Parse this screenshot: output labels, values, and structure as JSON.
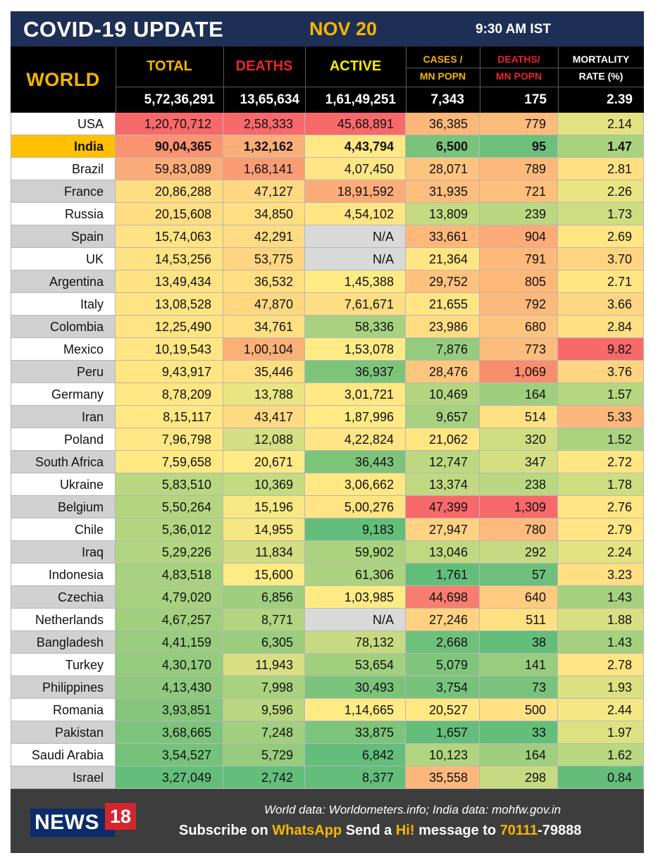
{
  "header": {
    "title": "COVID-19 UPDATE",
    "date": "NOV 20",
    "time": "9:30 AM IST"
  },
  "columns": {
    "region": "WORLD",
    "total": "TOTAL",
    "deaths": "DEATHS",
    "active": "ACTIVE",
    "cases_line1": "CASES /",
    "cases_line2": "MN POPN",
    "deaths_pm_line1": "DEATHS/",
    "deaths_pm_line2": "MN POPN",
    "mortality_line1": "MORTALITY",
    "mortality_line2": "RATE (%)"
  },
  "world_totals": {
    "total": "5,72,36,291",
    "deaths": "13,65,634",
    "active": "1,61,49,251",
    "cases_per_mn": "7,343",
    "deaths_per_mn": "175",
    "mortality": "2.39"
  },
  "colors": {
    "header_bg": "#1e2f55",
    "accent_yellow": "#f7b500",
    "deaths_red": "#e8262a",
    "highlight_row": "#ffc000",
    "row_alt_gray": "#d0d0d0",
    "scale_red": "#f8696b",
    "scale_orange": "#fcb77a",
    "scale_yellow": "#ffeb84",
    "scale_lightgreen": "#b1d580",
    "scale_green": "#63be7b",
    "na_gray": "#d9d9d9"
  },
  "rows": [
    {
      "country": "USA",
      "total": "1,20,70,712",
      "deaths": "2,58,333",
      "active": "45,68,891",
      "cases_pm": "36,385",
      "deaths_pm": "779",
      "mortality": "2.14",
      "bg": [
        "#f8696b",
        "#f8696b",
        "#f8696b",
        "#fcb77a",
        "#fdbb7c",
        "#e3e282"
      ]
    },
    {
      "country": "India",
      "total": "90,04,365",
      "deaths": "1,32,162",
      "active": "4,43,794",
      "cases_pm": "6,500",
      "deaths_pm": "95",
      "mortality": "1.47",
      "highlight": true,
      "bg": [
        "#f99370",
        "#fbae78",
        "#ffe883",
        "#79c37b",
        "#6cc07b",
        "#a9d27f"
      ]
    },
    {
      "country": "Brazil",
      "total": "59,83,089",
      "deaths": "1,68,141",
      "active": "4,07,450",
      "cases_pm": "28,071",
      "deaths_pm": "789",
      "mortality": "2.81",
      "bg": [
        "#fbac78",
        "#f99c74",
        "#ffe583",
        "#fdc47e",
        "#fdb97b",
        "#fee083"
      ]
    },
    {
      "country": "France",
      "total": "20,86,288",
      "deaths": "47,127",
      "active": "18,91,592",
      "cases_pm": "31,935",
      "deaths_pm": "721",
      "mortality": "2.26",
      "alt": true,
      "bg": [
        "#ffdd82",
        "#ffd881",
        "#fcac78",
        "#fdbd7c",
        "#fdc07d",
        "#e8e482"
      ]
    },
    {
      "country": "Russia",
      "total": "20,15,608",
      "deaths": "34,850",
      "active": "4,54,102",
      "cases_pm": "13,809",
      "deaths_pm": "239",
      "mortality": "1.73",
      "bg": [
        "#ffdd82",
        "#ffdf82",
        "#ffe583",
        "#c3da81",
        "#bad781",
        "#cfdd81"
      ]
    },
    {
      "country": "Spain",
      "total": "15,74,063",
      "deaths": "42,291",
      "active": "N/A",
      "cases_pm": "33,661",
      "deaths_pm": "904",
      "mortality": "2.69",
      "alt": true,
      "na": true,
      "bg": [
        "#ffe283",
        "#ffdb82",
        "#d9d9d9",
        "#fdb87a",
        "#fcaa77",
        "#ffe683"
      ]
    },
    {
      "country": "UK",
      "total": "14,53,256",
      "deaths": "53,775",
      "active": "N/A",
      "cases_pm": "21,364",
      "deaths_pm": "791",
      "mortality": "3.70",
      "na": true,
      "bg": [
        "#ffe283",
        "#ffd581",
        "#d9d9d9",
        "#ffe583",
        "#fdb97b",
        "#ffd581"
      ]
    },
    {
      "country": "Argentina",
      "total": "13,49,434",
      "deaths": "36,532",
      "active": "1,45,388",
      "cases_pm": "29,752",
      "deaths_pm": "805",
      "mortality": "2.71",
      "alt": true,
      "bg": [
        "#ffe383",
        "#ffdf82",
        "#ffeb84",
        "#fdc27d",
        "#fdb87a",
        "#ffe683"
      ]
    },
    {
      "country": "Italy",
      "total": "13,08,528",
      "deaths": "47,870",
      "active": "7,61,671",
      "cases_pm": "21,655",
      "deaths_pm": "792",
      "mortality": "3.66",
      "bg": [
        "#ffe483",
        "#ffd781",
        "#ffdd82",
        "#ffe583",
        "#fdb97b",
        "#ffd681"
      ]
    },
    {
      "country": "Colombia",
      "total": "12,25,490",
      "deaths": "34,761",
      "active": "58,336",
      "cases_pm": "23,986",
      "deaths_pm": "680",
      "mortality": "2.84",
      "alt": true,
      "bg": [
        "#ffe483",
        "#ffdf82",
        "#a8d17f",
        "#ffdc82",
        "#fdc47e",
        "#ffe083"
      ]
    },
    {
      "country": "Mexico",
      "total": "10,19,543",
      "deaths": "1,00,104",
      "active": "1,53,078",
      "cases_pm": "7,876",
      "deaths_pm": "773",
      "mortality": "9.82",
      "bg": [
        "#ffe683",
        "#fbb077",
        "#ffeb84",
        "#95cb7e",
        "#fdbb7c",
        "#f8696b"
      ]
    },
    {
      "country": "Peru",
      "total": "9,43,917",
      "deaths": "35,446",
      "active": "36,937",
      "cases_pm": "28,476",
      "deaths_pm": "1,069",
      "mortality": "3.76",
      "alt": true,
      "bg": [
        "#ffe683",
        "#ffdf82",
        "#7dc47b",
        "#fdc67e",
        "#f98e6f",
        "#ffd481"
      ]
    },
    {
      "country": "Germany",
      "total": "8,78,209",
      "deaths": "13,788",
      "active": "3,01,721",
      "cases_pm": "10,469",
      "deaths_pm": "164",
      "mortality": "1.57",
      "bg": [
        "#ffe783",
        "#e9e583",
        "#ffe783",
        "#b3d580",
        "#9fcf7e",
        "#b5d580"
      ]
    },
    {
      "country": "Iran",
      "total": "8,15,117",
      "deaths": "43,417",
      "active": "1,87,996",
      "cases_pm": "9,657",
      "deaths_pm": "514",
      "mortality": "5.33",
      "alt": true,
      "bg": [
        "#ffe883",
        "#ffda82",
        "#ffea84",
        "#a7d17f",
        "#ffe182",
        "#fcb77a"
      ]
    },
    {
      "country": "Poland",
      "total": "7,96,798",
      "deaths": "12,088",
      "active": "4,22,824",
      "cases_pm": "21,062",
      "deaths_pm": "320",
      "mortality": "1.52",
      "bg": [
        "#ffe883",
        "#d4de82",
        "#ffe583",
        "#ffe683",
        "#cfdd81",
        "#aad27f"
      ]
    },
    {
      "country": "South Africa",
      "total": "7,59,658",
      "deaths": "20,671",
      "active": "36,443",
      "cases_pm": "12,747",
      "deaths_pm": "347",
      "mortality": "2.72",
      "alt": true,
      "bg": [
        "#ffe983",
        "#ffea84",
        "#7dc47b",
        "#bdd881",
        "#d5df82",
        "#ffe683"
      ]
    },
    {
      "country": "Ukraine",
      "total": "5,83,510",
      "deaths": "10,369",
      "active": "3,06,662",
      "cases_pm": "13,374",
      "deaths_pm": "238",
      "mortality": "1.78",
      "bg": [
        "#b9d780",
        "#c4db81",
        "#ffe783",
        "#c0d981",
        "#bad781",
        "#cfdd81"
      ]
    },
    {
      "country": "Belgium",
      "total": "5,50,264",
      "deaths": "15,196",
      "active": "5,00,276",
      "cases_pm": "47,399",
      "deaths_pm": "1,309",
      "mortality": "2.76",
      "alt": true,
      "bg": [
        "#b4d580",
        "#f7e884",
        "#ffe483",
        "#f8696b",
        "#f8696b",
        "#ffe683"
      ]
    },
    {
      "country": "Chile",
      "total": "5,36,012",
      "deaths": "14,955",
      "active": "9,183",
      "cases_pm": "27,947",
      "deaths_pm": "780",
      "mortality": "2.79",
      "bg": [
        "#b3d580",
        "#f5e784",
        "#63be7b",
        "#ffd281",
        "#fdba7c",
        "#ffe583"
      ]
    },
    {
      "country": "Iraq",
      "total": "5,29,226",
      "deaths": "11,834",
      "active": "59,902",
      "cases_pm": "13,046",
      "deaths_pm": "292",
      "mortality": "2.24",
      "alt": true,
      "bg": [
        "#b1d580",
        "#d1dd82",
        "#aad27f",
        "#bfd981",
        "#c7da81",
        "#e4e382"
      ]
    },
    {
      "country": "Indonesia",
      "total": "4,83,518",
      "deaths": "15,600",
      "active": "61,306",
      "cases_pm": "1,761",
      "deaths_pm": "57",
      "mortality": "3.23",
      "bg": [
        "#a8d17f",
        "#ffeb84",
        "#acd37f",
        "#63be7b",
        "#6cc07b",
        "#ffdf82"
      ]
    },
    {
      "country": "Czechia",
      "total": "4,79,020",
      "deaths": "6,856",
      "active": "1,03,985",
      "cases_pm": "44,698",
      "deaths_pm": "640",
      "mortality": "1.43",
      "alt": true,
      "bg": [
        "#a6d17f",
        "#9fcf7e",
        "#ffeb84",
        "#f87d6e",
        "#ffcb7f",
        "#a5d17f"
      ]
    },
    {
      "country": "Netherlands",
      "total": "4,67,257",
      "deaths": "8,771",
      "active": "N/A",
      "cases_pm": "27,246",
      "deaths_pm": "511",
      "mortality": "1.88",
      "na": true,
      "bg": [
        "#a1cf7e",
        "#b1d580",
        "#d9d9d9",
        "#ffd281",
        "#ffe182",
        "#d7df82"
      ]
    },
    {
      "country": "Bangladesh",
      "total": "4,41,159",
      "deaths": "6,305",
      "active": "78,132",
      "cases_pm": "2,668",
      "deaths_pm": "38",
      "mortality": "1.43",
      "alt": true,
      "bg": [
        "#98cc7e",
        "#9bcd7e",
        "#c6db81",
        "#6ec17b",
        "#63be7b",
        "#a5d17f"
      ]
    },
    {
      "country": "Turkey",
      "total": "4,30,170",
      "deaths": "11,943",
      "active": "53,654",
      "cases_pm": "5,079",
      "deaths_pm": "141",
      "mortality": "2.78",
      "bg": [
        "#94cb7d",
        "#d7df82",
        "#a2cf7e",
        "#80c57c",
        "#99cc7e",
        "#ffe583"
      ]
    },
    {
      "country": "Philippines",
      "total": "4,13,430",
      "deaths": "7,998",
      "active": "30,493",
      "cases_pm": "3,754",
      "deaths_pm": "73",
      "mortality": "1.93",
      "alt": true,
      "bg": [
        "#8ec97d",
        "#a9d27f",
        "#7bc37b",
        "#77c27b",
        "#78c27b",
        "#dbe082"
      ]
    },
    {
      "country": "Romania",
      "total": "3,93,851",
      "deaths": "9,596",
      "active": "1,14,665",
      "cases_pm": "20,527",
      "deaths_pm": "500",
      "mortality": "2.44",
      "bg": [
        "#86c67c",
        "#b9d780",
        "#ffeb84",
        "#ffe883",
        "#ffe283",
        "#f5e884"
      ]
    },
    {
      "country": "Pakistan",
      "total": "3,68,665",
      "deaths": "7,248",
      "active": "33,875",
      "cases_pm": "1,657",
      "deaths_pm": "33",
      "mortality": "1.97",
      "alt": true,
      "bg": [
        "#7cc47b",
        "#a2cf7e",
        "#7cc47b",
        "#63be7b",
        "#63be7b",
        "#dee182"
      ]
    },
    {
      "country": "Saudi Arabia",
      "total": "3,54,527",
      "deaths": "5,729",
      "active": "6,842",
      "cases_pm": "10,123",
      "deaths_pm": "164",
      "mortality": "1.62",
      "bg": [
        "#76c27b",
        "#96cb7e",
        "#63be7b",
        "#b0d480",
        "#9fcf7e",
        "#bad781"
      ]
    },
    {
      "country": "Israel",
      "total": "3,27,049",
      "deaths": "2,742",
      "active": "8,377",
      "cases_pm": "35,558",
      "deaths_pm": "298",
      "mortality": "0.84",
      "alt": true,
      "bg": [
        "#63be7b",
        "#63be7b",
        "#63be7b",
        "#fcb77a",
        "#c7da81",
        "#63be7b"
      ]
    }
  ],
  "footer": {
    "logo_text": "NEWS",
    "logo_number": "18",
    "source": "World data: Worldometers.info; India data: mohfw.gov.in",
    "sub_1": "Subscribe on ",
    "sub_whatsapp": "WhatsApp",
    "sub_2": " Send a ",
    "sub_hi": "Hi!",
    "sub_3": " message to ",
    "sub_number": "70111",
    "sub_number_rest": "-79888"
  }
}
